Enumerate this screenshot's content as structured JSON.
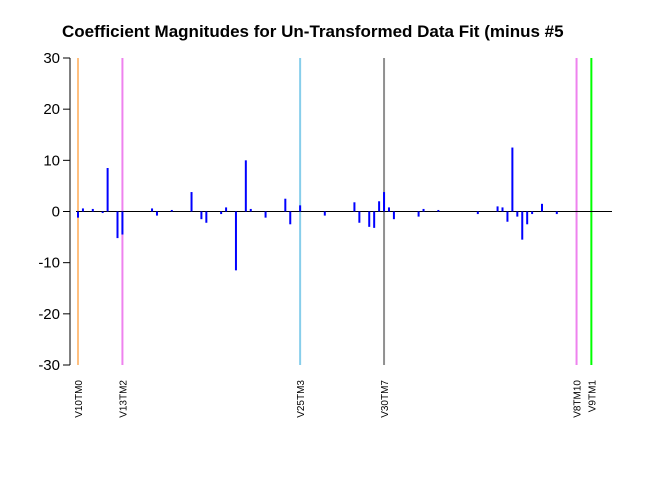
{
  "chart_data": {
    "type": "bar",
    "title": "Coefficient Magnitudes for Un-Transformed Data Fit (minus #5",
    "xlabel": "",
    "ylabel": "",
    "ylim": [
      -30,
      30
    ],
    "yticks": [
      -30,
      -20,
      -10,
      0,
      10,
      20,
      30
    ],
    "grid": false,
    "x_count": 120,
    "bar_color": "#0000ff",
    "bars": [
      {
        "x": 1,
        "value": -1.2
      },
      {
        "x": 2,
        "value": 0.6
      },
      {
        "x": 4,
        "value": 0.5
      },
      {
        "x": 6,
        "value": -0.3
      },
      {
        "x": 7,
        "value": 8.5
      },
      {
        "x": 9,
        "value": -5.2
      },
      {
        "x": 10,
        "value": -4.5
      },
      {
        "x": 16,
        "value": 0.6
      },
      {
        "x": 17,
        "value": -0.8
      },
      {
        "x": 20,
        "value": 0.3
      },
      {
        "x": 24,
        "value": 3.8
      },
      {
        "x": 26,
        "value": -1.5
      },
      {
        "x": 27,
        "value": -2.2
      },
      {
        "x": 30,
        "value": -0.5
      },
      {
        "x": 31,
        "value": 0.8
      },
      {
        "x": 33,
        "value": -11.5
      },
      {
        "x": 35,
        "value": 10.0
      },
      {
        "x": 36,
        "value": 0.5
      },
      {
        "x": 39,
        "value": -1.2
      },
      {
        "x": 43,
        "value": 2.5
      },
      {
        "x": 44,
        "value": -2.5
      },
      {
        "x": 46,
        "value": 1.2
      },
      {
        "x": 51,
        "value": -0.8
      },
      {
        "x": 57,
        "value": 1.8
      },
      {
        "x": 58,
        "value": -2.2
      },
      {
        "x": 60,
        "value": -3.0
      },
      {
        "x": 61,
        "value": -3.2
      },
      {
        "x": 62,
        "value": 2.0
      },
      {
        "x": 63,
        "value": 3.8
      },
      {
        "x": 64,
        "value": 0.8
      },
      {
        "x": 65,
        "value": -1.5
      },
      {
        "x": 70,
        "value": -1.0
      },
      {
        "x": 71,
        "value": 0.5
      },
      {
        "x": 74,
        "value": 0.3
      },
      {
        "x": 82,
        "value": -0.5
      },
      {
        "x": 86,
        "value": 1.0
      },
      {
        "x": 87,
        "value": 0.8
      },
      {
        "x": 88,
        "value": -2.0
      },
      {
        "x": 89,
        "value": 12.5
      },
      {
        "x": 90,
        "value": -1.0
      },
      {
        "x": 91,
        "value": -5.5
      },
      {
        "x": 92,
        "value": -2.5
      },
      {
        "x": 93,
        "value": -0.5
      },
      {
        "x": 95,
        "value": 1.5
      },
      {
        "x": 98,
        "value": -0.5
      }
    ],
    "reference_lines": [
      {
        "label": "V10TM0",
        "x": 1,
        "color": "#ffc080"
      },
      {
        "label": "V13TM2",
        "x": 10,
        "color": "#ee82ee"
      },
      {
        "label": "V25TM3",
        "x": 46,
        "color": "#87ceeb"
      },
      {
        "label": "V30TM7",
        "x": 63,
        "color": "#909090"
      },
      {
        "label": "V8TM10",
        "x": 102,
        "color": "#ee82ee"
      },
      {
        "label": "V9TM1",
        "x": 105,
        "color": "#00ff00"
      }
    ]
  }
}
